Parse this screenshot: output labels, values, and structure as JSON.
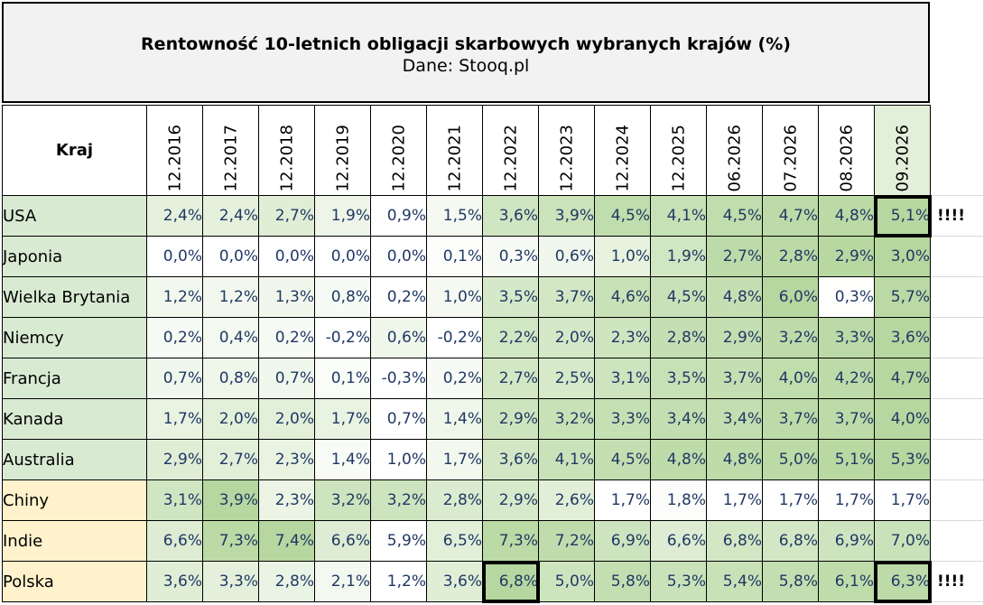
{
  "header": {
    "title": "Rentowność 10-letnich obligacji skarbowych wybranych krajów (%)",
    "subtitle": "Dane: Stooq.pl"
  },
  "table": {
    "country_header": "Kraj",
    "columns": [
      "12.2016",
      "12.2017",
      "12.2018",
      "12.2019",
      "12.2020",
      "12.2021",
      "12.2022",
      "12.2023",
      "12.2024",
      "12.2025",
      "06.2026",
      "07.2026",
      "08.2026",
      "09.2026"
    ],
    "rows": [
      {
        "country": "USA",
        "group": "a",
        "values": [
          "2,4%",
          "2,4%",
          "2,7%",
          "1,9%",
          "0,9%",
          "1,5%",
          "3,6%",
          "3,9%",
          "4,5%",
          "4,1%",
          "4,5%",
          "4,7%",
          "4,8%",
          "5,1%"
        ],
        "note": "!!!!",
        "highlight_col": 13
      },
      {
        "country": "Japonia",
        "group": "a",
        "values": [
          "0,0%",
          "0,0%",
          "0,0%",
          "0,0%",
          "0,0%",
          "0,1%",
          "0,3%",
          "0,6%",
          "1,0%",
          "1,9%",
          "2,7%",
          "2,8%",
          "2,9%",
          "3,0%"
        ]
      },
      {
        "country": "Wielka Brytania",
        "group": "a",
        "values": [
          "1,2%",
          "1,2%",
          "1,3%",
          "0,8%",
          "0,2%",
          "1,0%",
          "3,5%",
          "3,7%",
          "4,6%",
          "4,5%",
          "4,8%",
          "6,0%",
          "0,3%",
          "5,7%"
        ]
      },
      {
        "country": "Niemcy",
        "group": "a",
        "values": [
          "0,2%",
          "0,4%",
          "0,2%",
          "-0,2%",
          "0,6%",
          "-0,2%",
          "2,2%",
          "2,0%",
          "2,3%",
          "2,8%",
          "2,9%",
          "3,2%",
          "3,3%",
          "3,6%"
        ]
      },
      {
        "country": "Francja",
        "group": "a",
        "values": [
          "0,7%",
          "0,8%",
          "0,7%",
          "0,1%",
          "-0,3%",
          "0,2%",
          "2,7%",
          "2,5%",
          "3,1%",
          "3,5%",
          "3,7%",
          "4,0%",
          "4,2%",
          "4,7%"
        ]
      },
      {
        "country": "Kanada",
        "group": "a",
        "values": [
          "1,7%",
          "2,0%",
          "2,0%",
          "1,7%",
          "0,7%",
          "1,4%",
          "2,9%",
          "3,2%",
          "3,3%",
          "3,4%",
          "3,4%",
          "3,7%",
          "3,7%",
          "4,0%"
        ]
      },
      {
        "country": "Australia",
        "group": "a",
        "values": [
          "2,9%",
          "2,7%",
          "2,3%",
          "1,4%",
          "1,0%",
          "1,7%",
          "3,6%",
          "4,1%",
          "4,5%",
          "4,8%",
          "4,8%",
          "5,0%",
          "5,1%",
          "5,3%"
        ]
      },
      {
        "country": "Chiny",
        "group": "b",
        "values": [
          "3,1%",
          "3,9%",
          "2,3%",
          "3,2%",
          "3,2%",
          "2,8%",
          "2,9%",
          "2,6%",
          "1,7%",
          "1,8%",
          "1,7%",
          "1,7%",
          "1,7%",
          "1,7%"
        ]
      },
      {
        "country": "Indie",
        "group": "b",
        "values": [
          "6,6%",
          "7,3%",
          "7,4%",
          "6,6%",
          "5,9%",
          "6,5%",
          "7,3%",
          "7,2%",
          "6,9%",
          "6,6%",
          "6,8%",
          "6,8%",
          "6,9%",
          "7,0%"
        ]
      },
      {
        "country": "Polska",
        "group": "b",
        "values": [
          "3,6%",
          "3,3%",
          "2,8%",
          "2,1%",
          "1,2%",
          "3,6%",
          "6,8%",
          "5,0%",
          "5,8%",
          "5,3%",
          "5,4%",
          "5,8%",
          "6,1%",
          "6,3%"
        ],
        "note": "!!!!",
        "highlight_col": [
          6,
          13
        ]
      }
    ]
  },
  "colors": {
    "heat_high": "#a9d08e",
    "heat_low": "#ffffff",
    "group_a_label_bg": "#d9ead3",
    "group_b_label_bg": "#fff2cc",
    "value_text": "#1f3864"
  }
}
